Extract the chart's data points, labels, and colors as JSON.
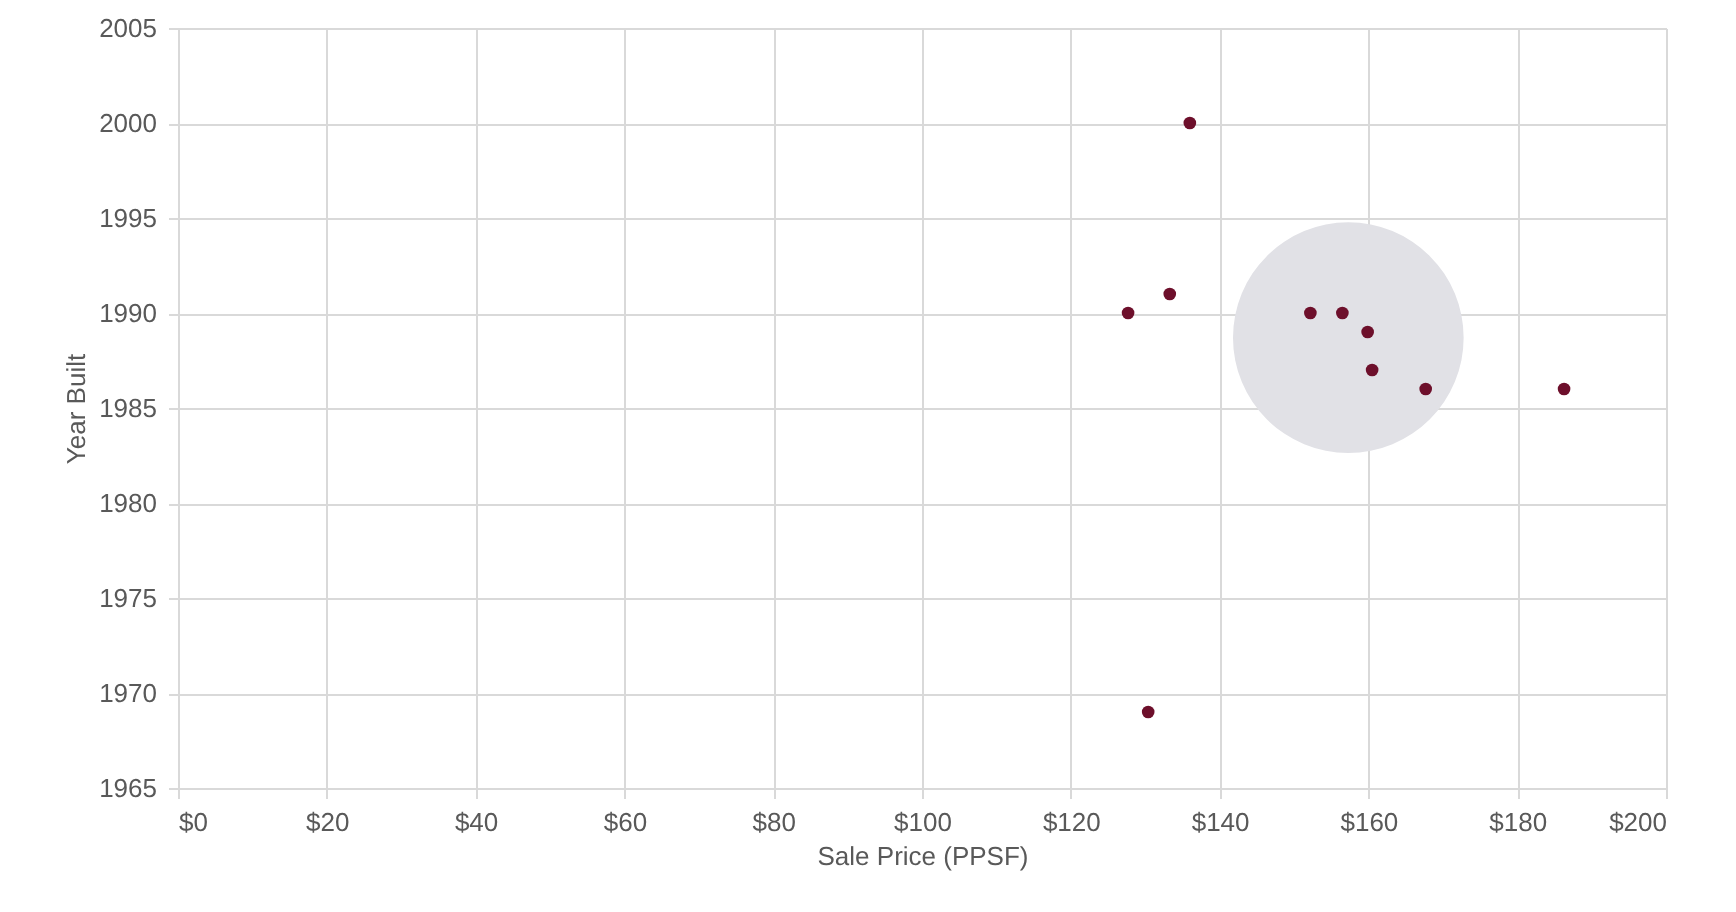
{
  "chart_data": {
    "type": "scatter",
    "xlabel": "Sale Price (PPSF)",
    "ylabel": "Year Built",
    "xlim": [
      0,
      200
    ],
    "ylim": [
      1965,
      2005
    ],
    "xticks": [
      {
        "value": 0,
        "label": "$0"
      },
      {
        "value": 20,
        "label": "$20"
      },
      {
        "value": 40,
        "label": "$40"
      },
      {
        "value": 60,
        "label": "$60"
      },
      {
        "value": 80,
        "label": "$80"
      },
      {
        "value": 100,
        "label": "$100"
      },
      {
        "value": 120,
        "label": "$120"
      },
      {
        "value": 140,
        "label": "$140"
      },
      {
        "value": 160,
        "label": "$160"
      },
      {
        "value": 180,
        "label": "$180"
      },
      {
        "value": 200,
        "label": "$200"
      }
    ],
    "yticks": [
      1965,
      1970,
      1975,
      1980,
      1985,
      1990,
      1995,
      2000,
      2005
    ],
    "grid": true,
    "marker": "circle",
    "series": [
      {
        "type": "bubble",
        "color": "#e1e1e6",
        "x": [
          157.3
        ],
        "values": [
          1988.7
        ],
        "sizes": [
          1
        ]
      },
      {
        "color": "#6d0f2b",
        "x": [
          127.7,
          133.3,
          136.0,
          130.4,
          152.2,
          156.5,
          159.9,
          160.5,
          167.7,
          186.3
        ],
        "values": [
          1990,
          1991,
          2000,
          1969,
          1990,
          1990,
          1989,
          1987,
          1986,
          1986
        ]
      }
    ]
  }
}
